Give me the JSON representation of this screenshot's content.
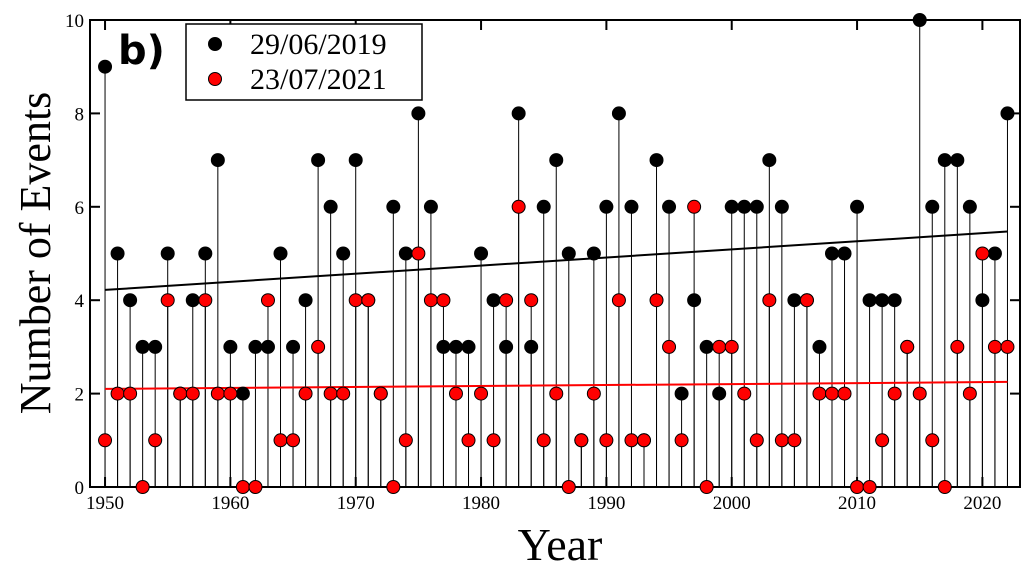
{
  "chart_data": {
    "type": "scatter",
    "annotation": "b)",
    "x_label": "Year",
    "y_label": "Number of Events",
    "x": [
      1950,
      1951,
      1952,
      1953,
      1954,
      1955,
      1956,
      1957,
      1958,
      1959,
      1960,
      1961,
      1962,
      1963,
      1964,
      1965,
      1966,
      1967,
      1968,
      1969,
      1970,
      1971,
      1972,
      1973,
      1974,
      1975,
      1976,
      1977,
      1978,
      1979,
      1980,
      1981,
      1982,
      1983,
      1984,
      1985,
      1986,
      1987,
      1988,
      1989,
      1990,
      1991,
      1992,
      1993,
      1994,
      1995,
      1996,
      1997,
      1998,
      1999,
      2000,
      2001,
      2002,
      2003,
      2004,
      2005,
      2006,
      2007,
      2008,
      2009,
      2010,
      2011,
      2012,
      2013,
      2014,
      2015,
      2016,
      2017,
      2018,
      2019,
      2020,
      2021,
      2022
    ],
    "series": [
      {
        "name": "29/06/2019",
        "color": "#000000",
        "values": [
          9,
          5,
          4,
          3,
          3,
          5,
          2,
          4,
          5,
          7,
          3,
          2,
          3,
          3,
          5,
          3,
          4,
          7,
          6,
          5,
          7,
          4,
          2,
          6,
          5,
          8,
          6,
          3,
          3,
          3,
          5,
          4,
          3,
          8,
          3,
          6,
          7,
          5,
          1,
          5,
          6,
          8,
          6,
          1,
          7,
          6,
          2,
          4,
          3,
          2,
          6,
          6,
          6,
          7,
          6,
          4,
          4,
          3,
          5,
          5,
          6,
          4,
          4,
          4,
          3,
          10,
          6,
          7,
          7,
          6,
          4,
          5,
          8
        ]
      },
      {
        "name": "23/07/2021",
        "color": "#ff0000",
        "values": [
          1,
          2,
          2,
          0,
          1,
          4,
          2,
          2,
          4,
          2,
          2,
          0,
          0,
          4,
          1,
          1,
          2,
          3,
          2,
          2,
          4,
          4,
          2,
          0,
          1,
          5,
          4,
          4,
          2,
          1,
          2,
          1,
          4,
          6,
          4,
          1,
          2,
          0,
          1,
          2,
          1,
          4,
          1,
          1,
          4,
          3,
          1,
          6,
          0,
          3,
          3,
          2,
          1,
          4,
          1,
          1,
          4,
          2,
          2,
          2,
          0,
          0,
          1,
          2,
          3,
          2,
          1,
          0,
          3,
          2,
          5,
          3,
          3
        ]
      }
    ],
    "fits": [
      {
        "color": "#000000",
        "x": [
          1950,
          2022
        ],
        "values": [
          4.22,
          5.47
        ]
      },
      {
        "color": "#ff0000",
        "x": [
          1950,
          2022
        ],
        "values": [
          2.1,
          2.25
        ]
      }
    ],
    "xlim": [
      1948.8,
      2023
    ],
    "xticks": [
      1950,
      1960,
      1970,
      1980,
      1990,
      2000,
      2010,
      2020
    ],
    "ylim": [
      0,
      10
    ],
    "yticks": [
      0,
      2,
      4,
      6,
      8,
      10
    ],
    "legend": "top-left"
  }
}
